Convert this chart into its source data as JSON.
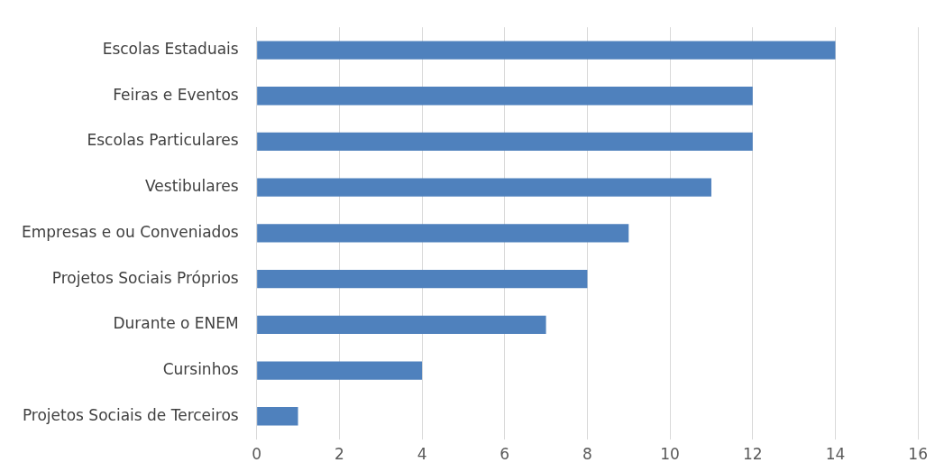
{
  "chart_data": {
    "type": "bar",
    "orientation": "horizontal",
    "categories": [
      "Escolas Estaduais",
      "Feiras e Eventos",
      "Escolas Particulares",
      "Vestibulares",
      "Empresas e ou Conveniados",
      "Projetos Sociais Próprios",
      "Durante o ENEM",
      "Cursinhos",
      "Projetos Sociais de Terceiros"
    ],
    "values": [
      14,
      12,
      12,
      11,
      9,
      8,
      7,
      4,
      1
    ],
    "color": "#4f81bd",
    "xlim": [
      0,
      16
    ],
    "xticks": [
      0,
      2,
      4,
      6,
      8,
      10,
      12,
      14,
      16
    ],
    "grid": "x",
    "legend": false
  }
}
